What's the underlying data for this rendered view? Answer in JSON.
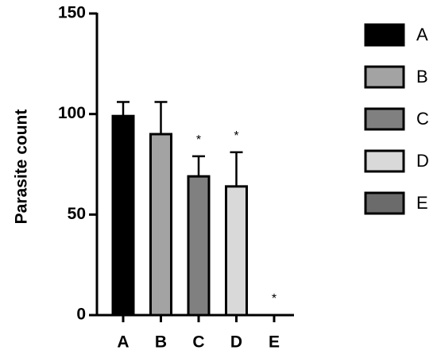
{
  "chart_data": {
    "type": "bar",
    "y_label": "Parasite count",
    "categories": [
      "A",
      "B",
      "C",
      "D",
      "E"
    ],
    "values": [
      99,
      90,
      69,
      64,
      0
    ],
    "errors": [
      7,
      16,
      10,
      17,
      0
    ],
    "colors": [
      "#000000",
      "#a3a3a3",
      "#808080",
      "#d9d9d9",
      "#6b6b6b"
    ],
    "annotations": [
      {
        "text": "*",
        "category": "C"
      },
      {
        "text": "*",
        "category": "D"
      },
      {
        "text": "*",
        "category": "E"
      }
    ],
    "ylim": [
      0,
      150
    ],
    "yticks": [
      0,
      50,
      100,
      150
    ],
    "legend": "right"
  }
}
